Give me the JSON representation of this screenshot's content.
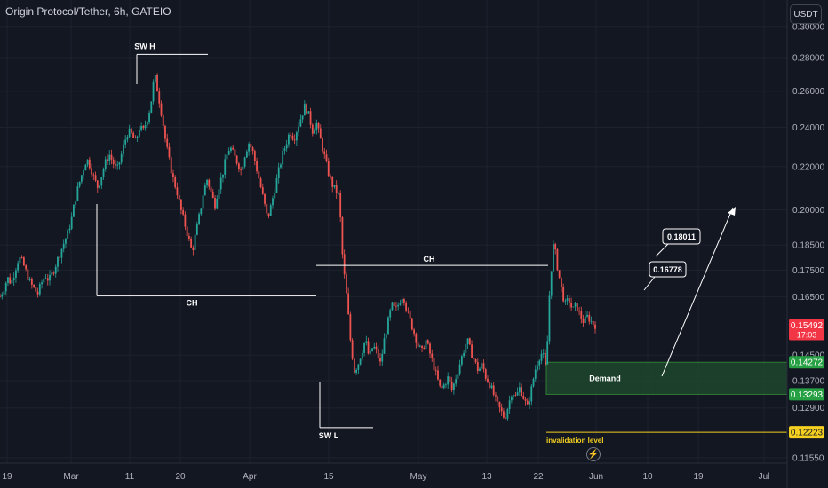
{
  "header": {
    "title": "Origin Protocol/Tether, 6h, GATEIO",
    "currency_button": "USDT"
  },
  "colors": {
    "background": "#131722",
    "up_candle": "#26a69a",
    "down_candle": "#ef5350",
    "price_label": "#f23645",
    "demand_zone": "#1f4d2e",
    "demand_label": "#26a043",
    "invalidation": "#f5d020",
    "annotation": "#ffffff"
  },
  "chart_data": {
    "type": "candlestick",
    "y_axis": {
      "ticks": [
        "0.30000",
        "0.28000",
        "0.26000",
        "0.24000",
        "0.22000",
        "0.20000",
        "0.18500",
        "0.17500",
        "0.16500",
        "0.14500",
        "0.13700",
        "0.12900",
        "0.11550"
      ],
      "scale": "log"
    },
    "x_axis": {
      "ticks": [
        "19",
        "Mar",
        "11",
        "20",
        "Apr",
        "15",
        "May",
        "13",
        "22",
        "Jun",
        "10",
        "19",
        "Jul"
      ]
    },
    "price_labels": [
      {
        "value": "0.15492",
        "sub": "17:03",
        "kind": "current"
      },
      {
        "value": "0.14272",
        "kind": "demand-top"
      },
      {
        "value": "0.13293",
        "kind": "demand-bottom"
      },
      {
        "value": "0.12223",
        "kind": "invalidation"
      }
    ],
    "annotations": {
      "swing_high": "SW H",
      "swing_low": "SW L",
      "change_1": "CH",
      "change_2": "CH",
      "demand": "Demand",
      "invalidation": "invalidation level",
      "target_1": "0.16778",
      "target_2": "0.18011"
    },
    "levels": {
      "swing_high": 0.282,
      "swing_low": 0.1235,
      "ch_low": 0.1653,
      "ch_high": 0.1768,
      "demand_top": 0.14272,
      "demand_bottom": 0.13293,
      "invalidation": 0.12223,
      "current": 0.15492
    },
    "price_path": [
      0.165,
      0.168,
      0.172,
      0.17,
      0.175,
      0.18,
      0.178,
      0.174,
      0.17,
      0.168,
      0.166,
      0.17,
      0.173,
      0.171,
      0.174,
      0.178,
      0.182,
      0.186,
      0.19,
      0.196,
      0.205,
      0.212,
      0.218,
      0.224,
      0.22,
      0.214,
      0.21,
      0.216,
      0.222,
      0.226,
      0.222,
      0.218,
      0.224,
      0.232,
      0.238,
      0.236,
      0.232,
      0.24,
      0.238,
      0.244,
      0.252,
      0.27,
      0.258,
      0.246,
      0.232,
      0.222,
      0.214,
      0.208,
      0.2,
      0.194,
      0.188,
      0.182,
      0.19,
      0.198,
      0.208,
      0.214,
      0.208,
      0.202,
      0.21,
      0.216,
      0.224,
      0.23,
      0.226,
      0.222,
      0.218,
      0.226,
      0.232,
      0.228,
      0.22,
      0.212,
      0.204,
      0.196,
      0.202,
      0.21,
      0.218,
      0.226,
      0.232,
      0.238,
      0.234,
      0.24,
      0.246,
      0.252,
      0.246,
      0.238,
      0.242,
      0.234,
      0.226,
      0.218,
      0.212,
      0.209,
      0.206,
      0.178,
      0.165,
      0.15,
      0.14,
      0.142,
      0.146,
      0.15,
      0.144,
      0.148,
      0.146,
      0.142,
      0.15,
      0.156,
      0.162,
      0.16,
      0.163,
      0.166,
      0.16,
      0.156,
      0.152,
      0.148,
      0.146,
      0.15,
      0.146,
      0.142,
      0.138,
      0.134,
      0.136,
      0.138,
      0.134,
      0.138,
      0.142,
      0.146,
      0.15,
      0.146,
      0.143,
      0.14,
      0.142,
      0.138,
      0.136,
      0.133,
      0.13,
      0.128,
      0.126,
      0.13,
      0.134,
      0.132,
      0.135,
      0.132,
      0.129,
      0.134,
      0.14,
      0.144,
      0.146,
      0.14,
      0.17,
      0.186,
      0.176,
      0.168,
      0.162,
      0.164,
      0.16,
      0.162,
      0.158,
      0.156,
      0.158,
      0.156,
      0.155
    ]
  }
}
